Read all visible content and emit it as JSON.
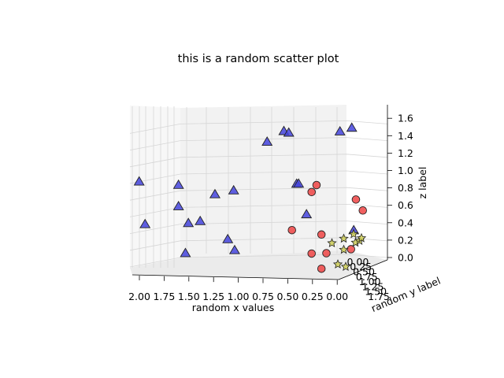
{
  "chart_data": {
    "type": "scatter",
    "title": "this is a random scatter plot",
    "xlabel": "random x values",
    "ylabel": "random y label",
    "zlabel": "z label",
    "x_ticks": [
      "2.00",
      "1.75",
      "1.50",
      "1.25",
      "1.00",
      "0.75",
      "0.50",
      "0.25",
      "0.00"
    ],
    "y_ticks": [
      "1.75",
      "1.50",
      "1.25",
      "1.00",
      "0.75",
      "0.50",
      "0.25",
      "0.00"
    ],
    "z_ticks": [
      "0.0",
      "0.2",
      "0.4",
      "0.6",
      "0.8",
      "1.0",
      "1.2",
      "1.4",
      "1.6"
    ],
    "series": [
      {
        "marker": "triangle",
        "color": "#4444dd",
        "points": [
          {
            "x": 2.02,
            "y": 1.2,
            "z": 1.05
          },
          {
            "x": 1.96,
            "y": 1.2,
            "z": 0.55
          },
          {
            "x": 1.62,
            "y": 1.2,
            "z": 1.0
          },
          {
            "x": 1.62,
            "y": 1.2,
            "z": 0.75
          },
          {
            "x": 1.52,
            "y": 1.2,
            "z": 0.55
          },
          {
            "x": 1.55,
            "y": 1.2,
            "z": 0.2
          },
          {
            "x": 1.4,
            "y": 1.2,
            "z": 0.57
          },
          {
            "x": 1.25,
            "y": 1.2,
            "z": 0.88
          },
          {
            "x": 1.06,
            "y": 1.2,
            "z": 0.92
          },
          {
            "x": 1.12,
            "y": 1.2,
            "z": 0.35
          },
          {
            "x": 1.05,
            "y": 1.2,
            "z": 0.22
          },
          {
            "x": 0.72,
            "y": 1.2,
            "z": 1.48
          },
          {
            "x": 0.55,
            "y": 1.2,
            "z": 1.6
          },
          {
            "x": 0.5,
            "y": 1.2,
            "z": 1.58
          },
          {
            "x": 0.42,
            "y": 1.2,
            "z": 0.98
          },
          {
            "x": 0.4,
            "y": 1.2,
            "z": 0.98
          },
          {
            "x": 0.32,
            "y": 1.2,
            "z": 0.62
          },
          {
            "x": -0.02,
            "y": 1.2,
            "z": 1.58
          },
          {
            "x": -0.14,
            "y": 1.2,
            "z": 1.62
          },
          {
            "x": -0.16,
            "y": 1.2,
            "z": 0.42
          }
        ]
      },
      {
        "marker": "circle",
        "color": "#ee4444",
        "points": [
          {
            "x": 0.25,
            "y": 0.2,
            "z": 0.98
          },
          {
            "x": 0.3,
            "y": 0.2,
            "z": 0.9
          },
          {
            "x": -0.15,
            "y": 0.2,
            "z": 0.8
          },
          {
            "x": -0.22,
            "y": 0.2,
            "z": 0.67
          },
          {
            "x": 0.5,
            "y": 0.2,
            "z": 0.46
          },
          {
            "x": 0.2,
            "y": 0.2,
            "z": 0.4
          },
          {
            "x": 0.3,
            "y": 0.2,
            "z": 0.18
          },
          {
            "x": 0.15,
            "y": 0.2,
            "z": 0.18
          },
          {
            "x": 0.2,
            "y": 0.2,
            "z": 0.0
          },
          {
            "x": -0.1,
            "y": 0.2,
            "z": 0.22
          }
        ]
      },
      {
        "marker": "star",
        "color": "#cccc55",
        "points": [
          {
            "x": 0.1,
            "y": 0.0,
            "z": 0.3
          },
          {
            "x": -0.02,
            "y": 0.0,
            "z": 0.35
          },
          {
            "x": -0.02,
            "y": 0.0,
            "z": 0.22
          },
          {
            "x": -0.12,
            "y": 0.0,
            "z": 0.4
          },
          {
            "x": -0.14,
            "y": 0.0,
            "z": 0.3
          },
          {
            "x": -0.18,
            "y": 0.0,
            "z": 0.32
          },
          {
            "x": -0.2,
            "y": 0.0,
            "z": 0.35
          },
          {
            "x": 0.04,
            "y": 0.0,
            "z": 0.05
          },
          {
            "x": -0.04,
            "y": 0.0,
            "z": 0.02
          }
        ]
      }
    ]
  }
}
